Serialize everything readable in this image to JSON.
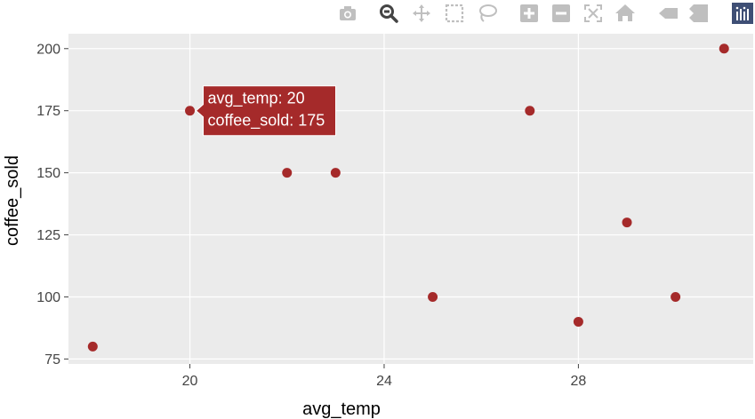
{
  "colors": {
    "plot_bg": "#ebebeb",
    "grid": "#ffffff",
    "marker": "#a52a2a",
    "tick_text": "#444444",
    "axis_title": "#000000",
    "modebar_icon": "#bfbfbf",
    "modebar_active": "#444444",
    "plotly_logo_bg": "#3f4f75"
  },
  "modebar": {
    "buttons": [
      "camera-icon",
      "zoom-icon",
      "pan-icon",
      "box-select-icon",
      "lasso-select-icon",
      "zoom-in-icon",
      "zoom-out-icon",
      "autoscale-icon",
      "reset-axes-icon",
      "spike-lines-icon",
      "compare-hover-icon",
      "plotly-logo-icon"
    ],
    "active": "zoom-icon"
  },
  "hover": {
    "x_line": "avg_temp: 20",
    "y_line": "coffee_sold: 175"
  },
  "chart_data": {
    "type": "scatter",
    "xlabel": "avg_temp",
    "ylabel": "coffee_sold",
    "xlim": [
      17.5,
      31.6
    ],
    "ylim": [
      73,
      206
    ],
    "xticks": [
      20,
      24,
      28
    ],
    "yticks": [
      75,
      100,
      125,
      150,
      175,
      200
    ],
    "grid": true,
    "points": [
      {
        "x": 18,
        "y": 80
      },
      {
        "x": 20,
        "y": 175
      },
      {
        "x": 22,
        "y": 150
      },
      {
        "x": 23,
        "y": 150
      },
      {
        "x": 25,
        "y": 100
      },
      {
        "x": 27,
        "y": 175
      },
      {
        "x": 28,
        "y": 90
      },
      {
        "x": 29,
        "y": 130
      },
      {
        "x": 30,
        "y": 100
      },
      {
        "x": 31,
        "y": 200
      }
    ],
    "hovered_index": 1
  }
}
